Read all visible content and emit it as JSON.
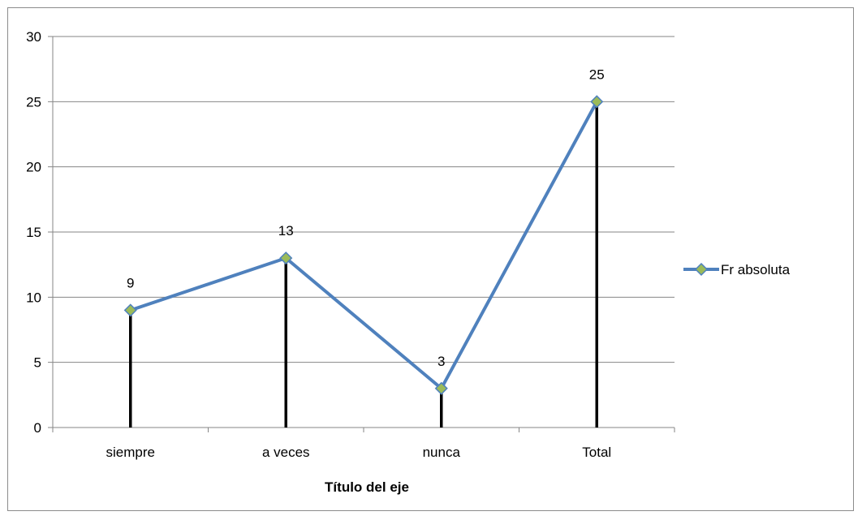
{
  "chart_data": {
    "type": "line",
    "categories": [
      "siempre",
      "a veces",
      "nunca",
      "Total"
    ],
    "series": [
      {
        "name": "Fr absoluta",
        "values": [
          9,
          13,
          3,
          25
        ]
      }
    ],
    "data_labels": [
      "9",
      "13",
      "3",
      "25"
    ],
    "title": "",
    "xlabel": "Título del eje",
    "ylabel": "",
    "ylim": [
      0,
      30
    ],
    "y_ticks": [
      "0",
      "5",
      "10",
      "15",
      "20",
      "25",
      "30"
    ],
    "grid": true,
    "drop_lines": true,
    "legend_position": "right"
  },
  "colors": {
    "line": "#4f81bd",
    "marker_fill": "#9bbb59",
    "drop_line": "#000000",
    "drop_line_glow": "#ff9999",
    "grid": "#868686",
    "axis": "#868686"
  }
}
